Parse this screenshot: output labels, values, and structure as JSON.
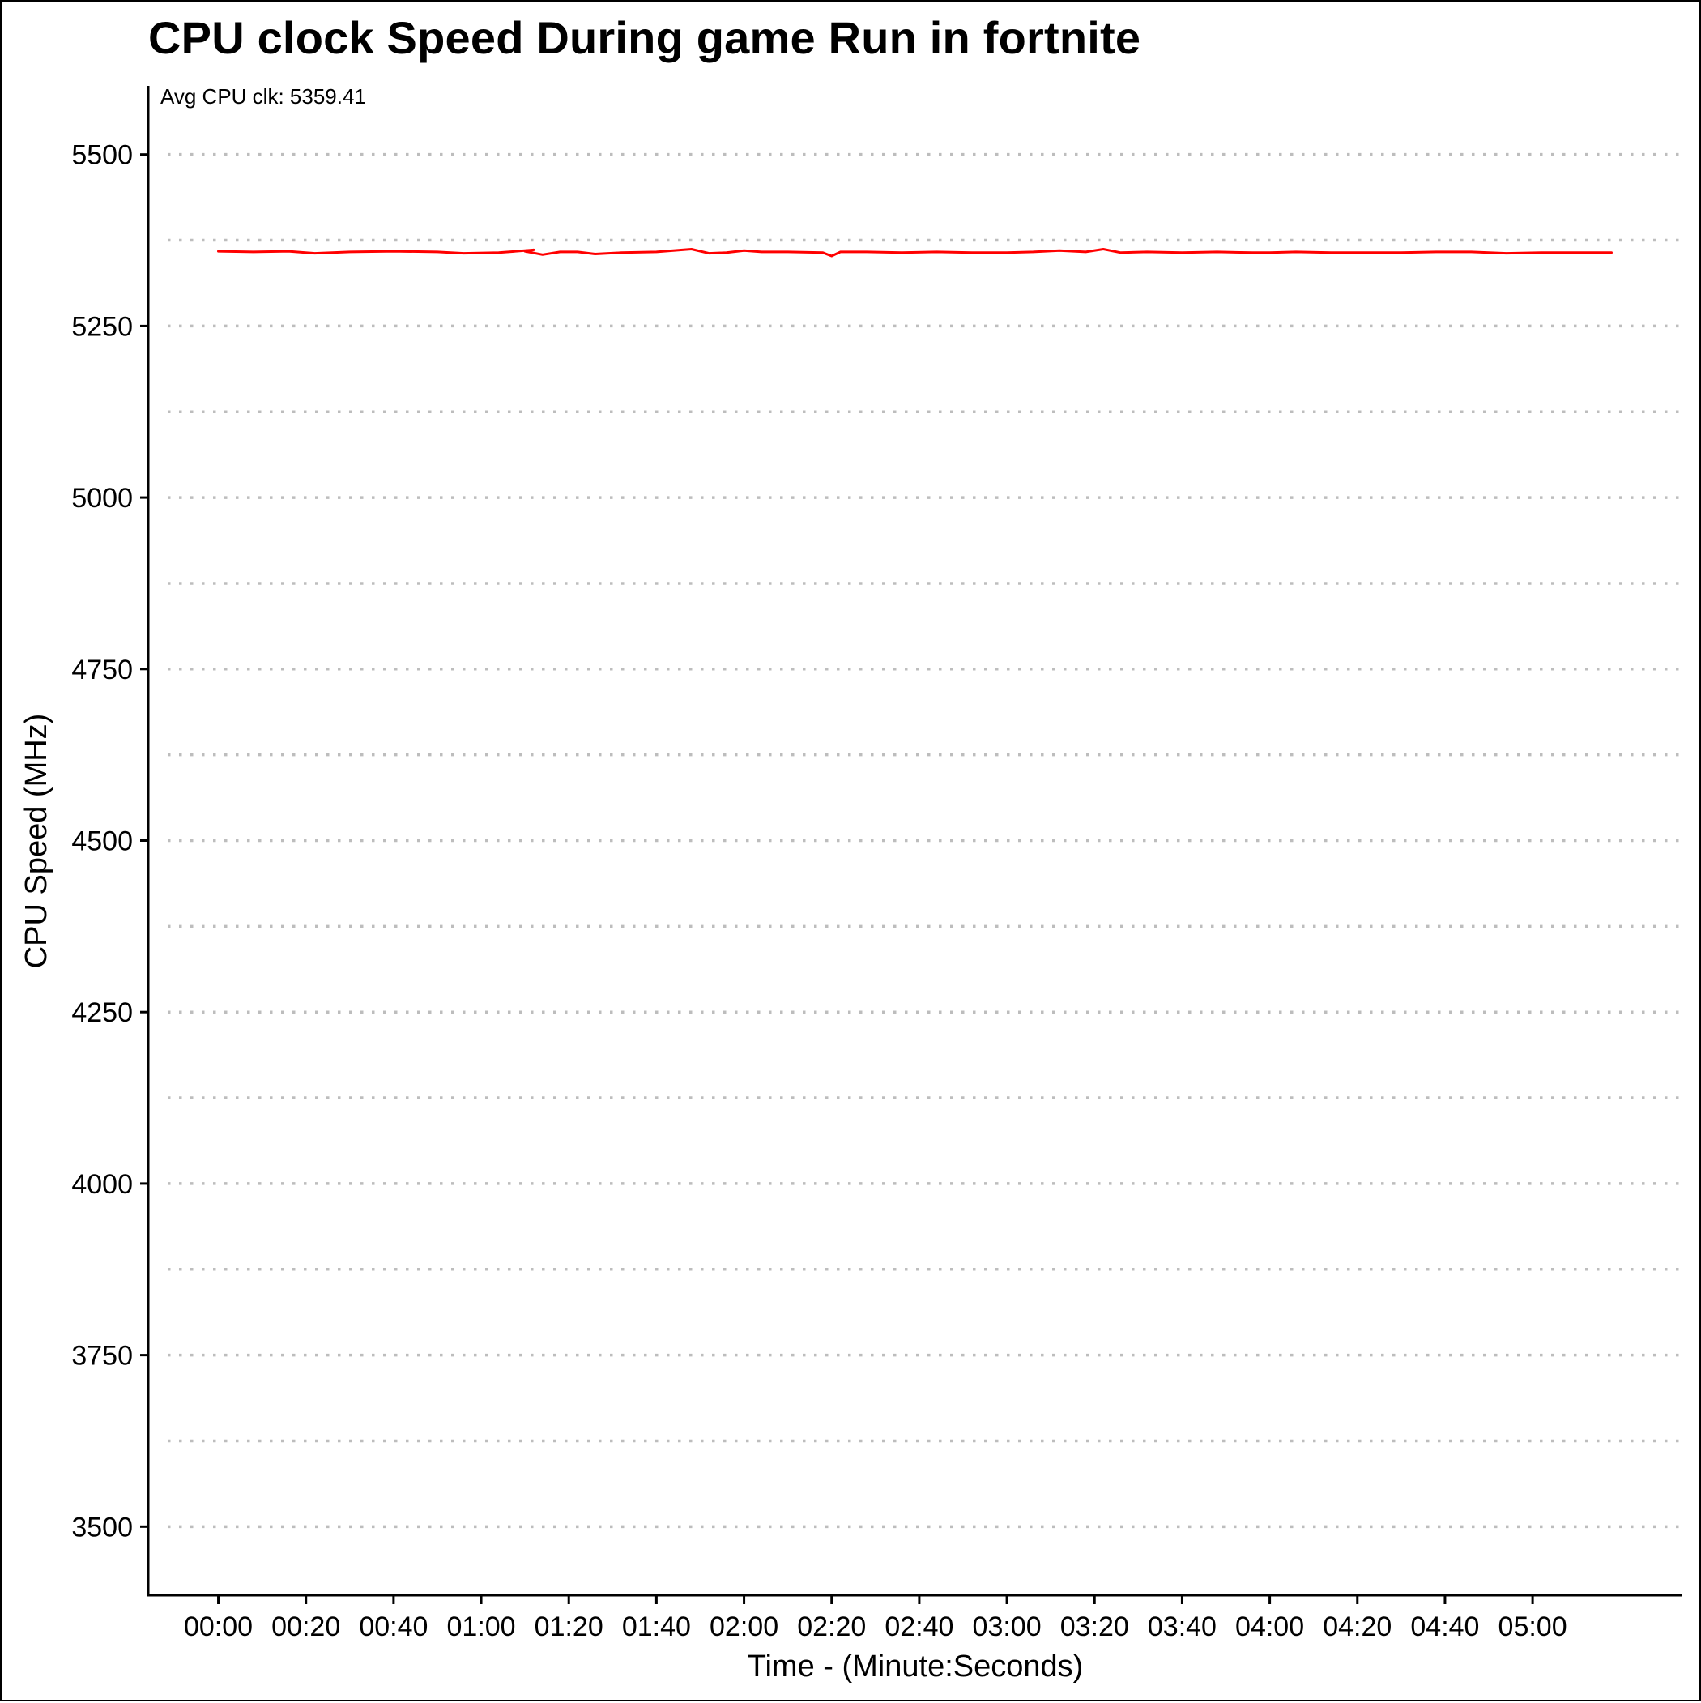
{
  "chart_data": {
    "type": "line",
    "title": "CPU clock Speed During game Run in fortnite",
    "xlabel": "Time - (Minute:Seconds)",
    "ylabel": "CPU Speed (MHz)",
    "annotation": "Avg CPU clk: 5359.41",
    "ylim": [
      3400,
      5600
    ],
    "xlim_seconds": [
      -16,
      334
    ],
    "y_ticks": [
      3500,
      3750,
      4000,
      4250,
      4500,
      4750,
      5000,
      5250,
      5500
    ],
    "y_gridlines": [
      3500,
      3625,
      3750,
      3875,
      4000,
      4125,
      4250,
      4375,
      4500,
      4625,
      4750,
      4875,
      5000,
      5125,
      5250,
      5375,
      5500
    ],
    "x_ticks": [
      {
        "value": 0,
        "label": "00:00"
      },
      {
        "value": 20,
        "label": "00:20"
      },
      {
        "value": 40,
        "label": "00:40"
      },
      {
        "value": 60,
        "label": "01:00"
      },
      {
        "value": 80,
        "label": "01:20"
      },
      {
        "value": 100,
        "label": "01:40"
      },
      {
        "value": 120,
        "label": "02:00"
      },
      {
        "value": 140,
        "label": "02:20"
      },
      {
        "value": 160,
        "label": "02:40"
      },
      {
        "value": 180,
        "label": "03:00"
      },
      {
        "value": 200,
        "label": "03:20"
      },
      {
        "value": 220,
        "label": "03:40"
      },
      {
        "value": 240,
        "label": "04:00"
      },
      {
        "value": 260,
        "label": "04:20"
      },
      {
        "value": 280,
        "label": "04:40"
      },
      {
        "value": 300,
        "label": "05:00"
      }
    ],
    "grid": "horizontal dotted",
    "series": [
      {
        "color": "#ff0000",
        "x_unit": "seconds",
        "x": [
          0,
          8,
          16,
          22,
          30,
          40,
          50,
          56,
          64,
          72,
          70,
          74,
          78,
          82,
          86,
          92,
          100,
          108,
          112,
          116,
          120,
          124,
          130,
          138,
          140,
          142,
          148,
          156,
          164,
          172,
          180,
          186,
          192,
          198,
          202,
          206,
          212,
          220,
          228,
          236,
          240,
          246,
          254,
          262,
          270,
          278,
          286,
          294,
          302,
          310,
          318
        ],
        "y": [
          5359,
          5358,
          5359,
          5356,
          5358,
          5359,
          5358,
          5356,
          5357,
          5361,
          5359,
          5354,
          5358,
          5358,
          5355,
          5357,
          5358,
          5362,
          5356,
          5357,
          5360,
          5358,
          5358,
          5357,
          5352,
          5358,
          5358,
          5357,
          5358,
          5357,
          5357,
          5358,
          5360,
          5358,
          5362,
          5357,
          5358,
          5357,
          5358,
          5357,
          5357,
          5358,
          5357,
          5357,
          5357,
          5358,
          5358,
          5356,
          5357,
          5357,
          5357
        ]
      }
    ]
  }
}
